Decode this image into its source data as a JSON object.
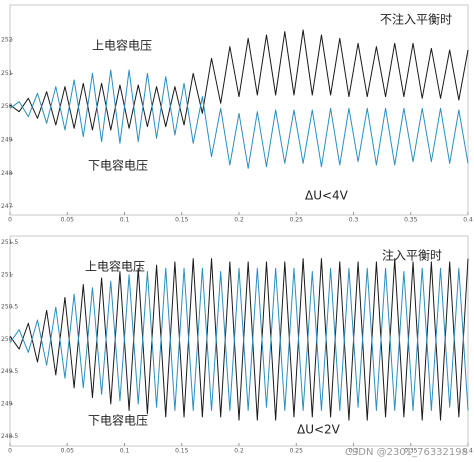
{
  "chart_data": [
    {
      "type": "line",
      "annotations": [
        "上电容电压",
        "下电容电压",
        "不注入平衡时",
        "ΔU<4V"
      ],
      "x": [
        0,
        0.008,
        0.016,
        0.024,
        0.032,
        0.04,
        0.048,
        0.056,
        0.064,
        0.072,
        0.08,
        0.088,
        0.096,
        0.104,
        0.112,
        0.12,
        0.128,
        0.136,
        0.144,
        0.152,
        0.16,
        0.168,
        0.176,
        0.184,
        0.192,
        0.2,
        0.208,
        0.216,
        0.224,
        0.232,
        0.24,
        0.248,
        0.256,
        0.264,
        0.272,
        0.28,
        0.288,
        0.296,
        0.304,
        0.312,
        0.32,
        0.328,
        0.336,
        0.344,
        0.352,
        0.36,
        0.368,
        0.376,
        0.384,
        0.392,
        0.4
      ],
      "series": [
        {
          "color": "#1a1a1a",
          "values": [
            250.05,
            249.85,
            250.25,
            249.65,
            250.45,
            249.45,
            250.6,
            249.35,
            250.7,
            249.3,
            250.7,
            249.3,
            250.65,
            249.35,
            250.65,
            249.4,
            250.6,
            249.4,
            250.6,
            249.45,
            251.0,
            249.8,
            251.45,
            250.1,
            251.8,
            250.3,
            252.05,
            250.35,
            252.15,
            250.35,
            252.25,
            250.35,
            252.3,
            250.35,
            252.15,
            250.35,
            252.05,
            250.3,
            251.9,
            250.3,
            251.8,
            250.3,
            251.9,
            250.3,
            251.9,
            250.25,
            251.75,
            250.25,
            251.7,
            250.2,
            251.7
          ]
        },
        {
          "color": "#2a8fc0",
          "values": [
            249.95,
            250.15,
            249.7,
            250.4,
            249.5,
            250.6,
            249.3,
            250.8,
            249.1,
            251.0,
            248.95,
            251.1,
            248.9,
            251.1,
            248.95,
            251.0,
            249.05,
            250.9,
            249.15,
            250.7,
            248.9,
            250.3,
            248.5,
            249.95,
            248.25,
            249.8,
            248.15,
            249.85,
            248.2,
            249.9,
            248.3,
            249.9,
            248.3,
            249.9,
            248.2,
            249.95,
            248.25,
            249.95,
            248.35,
            249.95,
            248.25,
            249.95,
            248.25,
            249.95,
            248.35,
            249.95,
            248.35,
            249.95,
            248.3,
            249.9,
            248.3
          ]
        }
      ],
      "xlim": [
        0,
        0.4
      ],
      "xticks": [
        0,
        0.05,
        0.1,
        0.15,
        0.2,
        0.25,
        0.3,
        0.35,
        0.4
      ],
      "ylim": [
        246.75,
        253.05
      ],
      "yticks": [
        247,
        248,
        249,
        250,
        251,
        252
      ],
      "grid": false
    },
    {
      "type": "line",
      "annotations": [
        "上电容电压",
        "下电容电压",
        "注入平衡时",
        "ΔU<2V"
      ],
      "x": [
        0,
        0.008,
        0.016,
        0.024,
        0.032,
        0.04,
        0.048,
        0.056,
        0.064,
        0.072,
        0.08,
        0.088,
        0.096,
        0.104,
        0.112,
        0.12,
        0.128,
        0.136,
        0.144,
        0.152,
        0.16,
        0.168,
        0.176,
        0.184,
        0.192,
        0.2,
        0.208,
        0.216,
        0.224,
        0.232,
        0.24,
        0.248,
        0.256,
        0.264,
        0.272,
        0.28,
        0.288,
        0.296,
        0.304,
        0.312,
        0.32,
        0.328,
        0.336,
        0.344,
        0.352,
        0.36,
        0.368,
        0.376,
        0.384,
        0.392,
        0.4
      ],
      "series": [
        {
          "color": "#1a1a1a",
          "values": [
            250.05,
            249.85,
            250.25,
            249.65,
            250.45,
            249.45,
            250.65,
            249.25,
            250.85,
            249.1,
            250.95,
            249.0,
            251.05,
            248.9,
            251.1,
            248.85,
            251.15,
            248.8,
            251.2,
            248.8,
            251.25,
            248.8,
            251.25,
            248.8,
            251.2,
            248.75,
            251.2,
            248.75,
            251.2,
            248.75,
            251.2,
            248.8,
            251.25,
            248.8,
            251.25,
            248.8,
            251.2,
            248.75,
            251.2,
            248.75,
            251.2,
            248.8,
            251.25,
            248.8,
            251.2,
            248.75,
            251.2,
            248.75,
            251.2,
            248.8,
            251.25
          ]
        },
        {
          "color": "#2a8fc0",
          "values": [
            249.95,
            250.15,
            249.8,
            250.3,
            249.6,
            250.5,
            249.4,
            250.7,
            249.25,
            250.8,
            249.15,
            250.9,
            249.05,
            251.0,
            249.0,
            251.05,
            248.95,
            251.1,
            248.9,
            251.1,
            248.9,
            251.1,
            248.9,
            251.05,
            248.9,
            251.1,
            248.9,
            251.1,
            248.95,
            251.1,
            248.9,
            251.1,
            248.9,
            251.05,
            248.9,
            251.1,
            248.9,
            251.1,
            248.95,
            251.1,
            248.9,
            251.1,
            248.9,
            251.05,
            248.9,
            251.1,
            248.9,
            251.1,
            248.95,
            251.1,
            248.9
          ]
        }
      ],
      "xlim": [
        0,
        0.4
      ],
      "xticks": [
        0,
        0.05,
        0.1,
        0.15,
        0.2,
        0.25,
        0.3,
        0.35,
        0.4
      ],
      "ylim": [
        248.35,
        251.6
      ],
      "yticks": [
        248.5,
        249,
        249.5,
        250,
        250.5,
        251,
        251.5
      ],
      "grid": false
    }
  ],
  "watermark": "CSDN @2301_76332198"
}
